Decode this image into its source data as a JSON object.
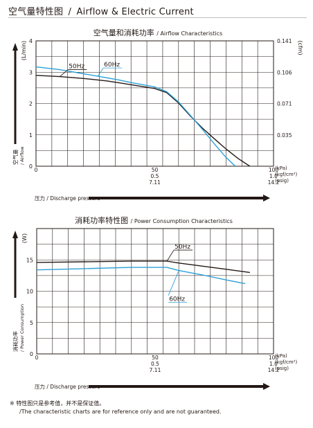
{
  "page": {
    "title_cn": "空气量特性图",
    "title_en": "Airflow & Electric Current",
    "title_sep": "/"
  },
  "chart_data": [
    {
      "type": "line",
      "title_cn": "空气量和消耗功率",
      "title_en": "/ Airflow Characteristics",
      "ylabel_left": "(L/min)",
      "ylabel_right": "(cfm)",
      "side_label_cn": "空气量",
      "side_label_en": "/ Airflow",
      "bottom_label": "压力 / Discharge pressure",
      "x_unit_labels": [
        "(kPa)",
        "(kgf/cm²)",
        "(psig)"
      ],
      "x_ticks": [
        {
          "value": 0,
          "lines": [
            "0"
          ]
        },
        {
          "value": 50,
          "lines": [
            "50",
            "0.5",
            "7.11"
          ]
        },
        {
          "value": 100,
          "lines": [
            "100",
            "1.0",
            "14.2"
          ]
        }
      ],
      "xlim": [
        0,
        100
      ],
      "ylim": [
        0,
        4
      ],
      "y_ticks": [
        0,
        1,
        2,
        3,
        4
      ],
      "y_right_ticks": [
        {
          "at": 1,
          "label": "0.035"
        },
        {
          "at": 2,
          "label": "0.071"
        },
        {
          "at": 3,
          "label": "0.106"
        },
        {
          "at": 4,
          "label": "0.141"
        }
      ],
      "grid": true,
      "series": [
        {
          "name": "50Hz",
          "color": "#231815",
          "x": [
            0,
            10,
            20,
            30,
            35,
            40,
            45,
            50,
            55,
            60,
            65,
            70,
            75,
            80,
            85,
            90
          ],
          "y": [
            2.9,
            2.86,
            2.8,
            2.72,
            2.66,
            2.6,
            2.54,
            2.48,
            2.35,
            2.02,
            1.6,
            1.22,
            0.88,
            0.55,
            0.25,
            0
          ]
        },
        {
          "name": "60Hz",
          "color": "#2b9fd6",
          "x": [
            0,
            10,
            20,
            30,
            35,
            40,
            45,
            50,
            55,
            60,
            65,
            70,
            75,
            80,
            85,
            88
          ],
          "y": [
            3.17,
            3.08,
            2.95,
            2.82,
            2.75,
            2.67,
            2.6,
            2.53,
            2.38,
            2.05,
            1.62,
            1.18,
            0.72,
            0.28,
            -0.08,
            -0.2
          ]
        }
      ],
      "annotations": [
        {
          "text": "50Hz",
          "series": "50Hz",
          "x": 10,
          "y": 2.86
        },
        {
          "text": "60Hz",
          "series": "60Hz",
          "x": 26,
          "y": 2.87
        }
      ]
    },
    {
      "type": "line",
      "title_cn": "消耗功率特性图",
      "title_en": "/ Power Consumption Characteristics",
      "ylabel_left": "(W)",
      "side_label_cn": "消耗功率",
      "side_label_en": "/ Power Consumption",
      "bottom_label": "压力 / Discharge pressure",
      "x_unit_labels": [
        "(kPa)",
        "(kgf/cm²)",
        "(psig)"
      ],
      "x_ticks": [
        {
          "value": 0,
          "lines": [
            "0"
          ]
        },
        {
          "value": 50,
          "lines": [
            "50",
            "0.5",
            "7.11"
          ]
        },
        {
          "value": 100,
          "lines": [
            "100",
            "1.0",
            "14.2"
          ]
        }
      ],
      "xlim": [
        0,
        100
      ],
      "ylim": [
        0,
        20
      ],
      "y_ticks": [
        0,
        5,
        10,
        15
      ],
      "grid": true,
      "series": [
        {
          "name": "50Hz",
          "color": "#231815",
          "x": [
            0,
            20,
            40,
            55,
            60,
            70,
            80,
            90
          ],
          "y": [
            14.6,
            14.7,
            14.8,
            14.8,
            14.5,
            14.0,
            13.5,
            13.0
          ]
        },
        {
          "name": "60Hz",
          "color": "#2b9fd6",
          "x": [
            0,
            20,
            40,
            55,
            60,
            70,
            80,
            88
          ],
          "y": [
            13.4,
            13.6,
            13.8,
            13.8,
            13.3,
            12.6,
            11.8,
            11.2
          ]
        }
      ],
      "annotations": [
        {
          "text": "50Hz",
          "series": "50Hz",
          "x": 55,
          "y": 14.8
        },
        {
          "text": "60Hz",
          "series": "60Hz",
          "x": 60,
          "y": 13.3
        }
      ]
    }
  ],
  "footnote": {
    "line1": "※ 特性图只是参考值，并不是保证值。",
    "line2": "/The characteristic charts are for reference only and are not guaranteed."
  }
}
